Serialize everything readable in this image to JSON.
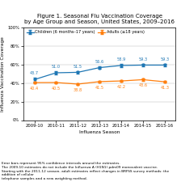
{
  "chart_data": {
    "type": "line",
    "title": "Figure 1. Seasonal Flu Vaccination Coverage\nby Age Group and Season, United States, 2009–2016",
    "xlabel": "Influenza Season",
    "ylabel": "Influenza Vaccination Coverage",
    "categories": [
      "2009-10",
      "2010-11",
      "2011-12",
      "2012-13",
      "2013-14",
      "2014-15",
      "2015-16"
    ],
    "series": [
      {
        "name": "Children (6 months–17 years)",
        "values": [
          43.7,
          51.0,
          51.5,
          56.6,
          58.9,
          59.3,
          59.3
        ],
        "errors": [
          2.0,
          1.5,
          1.5,
          1.5,
          1.5,
          1.5,
          1.5
        ]
      },
      {
        "name": "Adults (≥18 years)",
        "values": [
          40.4,
          40.5,
          38.8,
          41.5,
          42.2,
          43.6,
          41.3
        ],
        "errors": [
          1.0,
          1.0,
          1.0,
          1.0,
          1.0,
          1.0,
          1.0
        ]
      }
    ],
    "ylim": [
      0,
      100
    ],
    "yticks": [
      {
        "value": 0,
        "label": "0%"
      },
      {
        "value": 20,
        "label": "20%"
      },
      {
        "value": 40,
        "label": "40%"
      },
      {
        "value": 60,
        "label": "60%"
      },
      {
        "value": 80,
        "label": "80%"
      },
      {
        "value": 100,
        "label": "100%"
      }
    ],
    "grid": "y",
    "legend": "upper left",
    "marker": "o",
    "data_labels": true,
    "footnote": "Error bars represent 95% confidence intervals around the estimates.\nThe 2009-10 estimates do not include the Influenza A (H1N1) pdm09 monovalent vaccine.\nStarting with the 2011-12 season, adult estimates reflect changes in BRFSS survey methods: the addition of cellular\ntelephone samples and a new weighting method."
  }
}
